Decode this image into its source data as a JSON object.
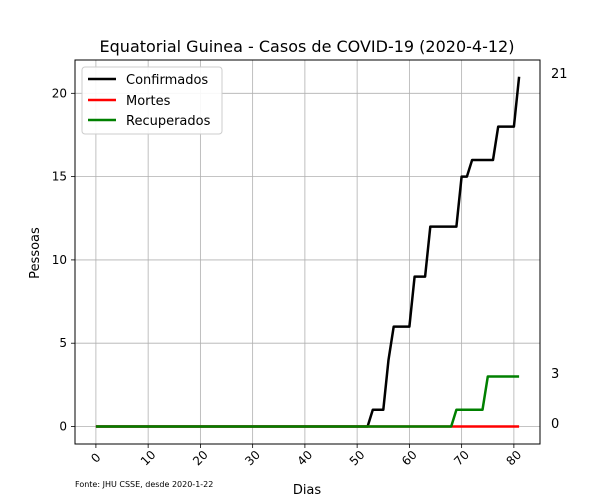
{
  "chart_data": {
    "type": "line",
    "title": "Equatorial Guinea - Casos de COVID-19 (2020-4-12)",
    "xlabel": "Dias",
    "ylabel": "Pessoas",
    "xlim": [
      -4,
      85
    ],
    "ylim": [
      -1.05,
      22
    ],
    "xticks": [
      0,
      10,
      20,
      30,
      40,
      50,
      60,
      70,
      80
    ],
    "yticks": [
      0,
      5,
      10,
      15,
      20
    ],
    "grid": true,
    "legend_position": "upper-left",
    "source_note": "Fonte: JHU CSSE, desde 2020-1-22",
    "end_labels": [
      "21",
      "3",
      "0"
    ],
    "series": [
      {
        "name": "Confirmados",
        "color": "#000000",
        "points": [
          [
            0,
            0
          ],
          [
            52,
            0
          ],
          [
            53,
            1
          ],
          [
            55,
            1
          ],
          [
            56,
            4
          ],
          [
            57,
            6
          ],
          [
            60,
            6
          ],
          [
            61,
            9
          ],
          [
            63,
            9
          ],
          [
            64,
            12
          ],
          [
            69,
            12
          ],
          [
            70,
            15
          ],
          [
            71,
            15
          ],
          [
            72,
            16
          ],
          [
            76,
            16
          ],
          [
            77,
            18
          ],
          [
            80,
            18
          ],
          [
            81,
            21
          ]
        ]
      },
      {
        "name": "Mortes",
        "color": "#ff0000",
        "points": [
          [
            0,
            0
          ],
          [
            81,
            0
          ]
        ]
      },
      {
        "name": "Recuperados",
        "color": "#008000",
        "points": [
          [
            0,
            0
          ],
          [
            68,
            0
          ],
          [
            69,
            1
          ],
          [
            74,
            1
          ],
          [
            75,
            3
          ],
          [
            81,
            3
          ]
        ]
      }
    ]
  }
}
